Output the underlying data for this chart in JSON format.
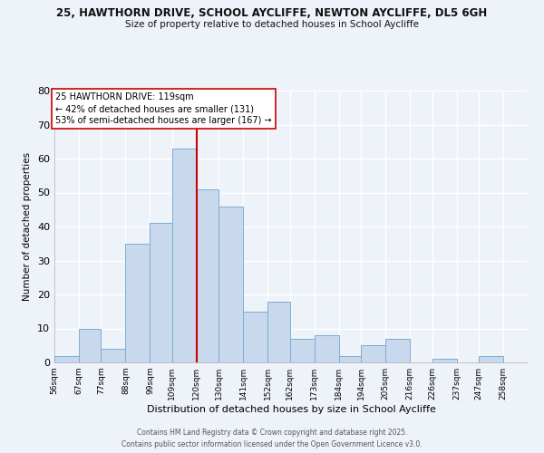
{
  "title1": "25, HAWTHORN DRIVE, SCHOOL AYCLIFFE, NEWTON AYCLIFFE, DL5 6GH",
  "title2": "Size of property relative to detached houses in School Aycliffe",
  "xlabel": "Distribution of detached houses by size in School Aycliffe",
  "ylabel": "Number of detached properties",
  "bar_color": "#c8d9ee",
  "bar_edge_color": "#7badd4",
  "vline_x": 120,
  "vline_color": "#cc0000",
  "annotation_title": "25 HAWTHORN DRIVE: 119sqm",
  "annotation_line1": "← 42% of detached houses are smaller (131)",
  "annotation_line2": "53% of semi-detached houses are larger (167) →",
  "annotation_box_color": "#ffffff",
  "annotation_box_edge": "#cc0000",
  "bin_edges": [
    56,
    67,
    77,
    88,
    99,
    109,
    120,
    130,
    141,
    152,
    162,
    173,
    184,
    194,
    205,
    216,
    226,
    237,
    247,
    258,
    269
  ],
  "bar_heights": [
    2,
    10,
    4,
    35,
    41,
    63,
    51,
    46,
    15,
    18,
    7,
    8,
    2,
    5,
    7,
    0,
    1,
    0,
    2,
    0
  ],
  "ylim": [
    0,
    80
  ],
  "yticks": [
    0,
    10,
    20,
    30,
    40,
    50,
    60,
    70,
    80
  ],
  "footer_line1": "Contains HM Land Registry data © Crown copyright and database right 2025.",
  "footer_line2": "Contains public sector information licensed under the Open Government Licence v3.0.",
  "background_color": "#eef2f9",
  "grid_color": "#ffffff",
  "grid_bg": "#dde6f5"
}
